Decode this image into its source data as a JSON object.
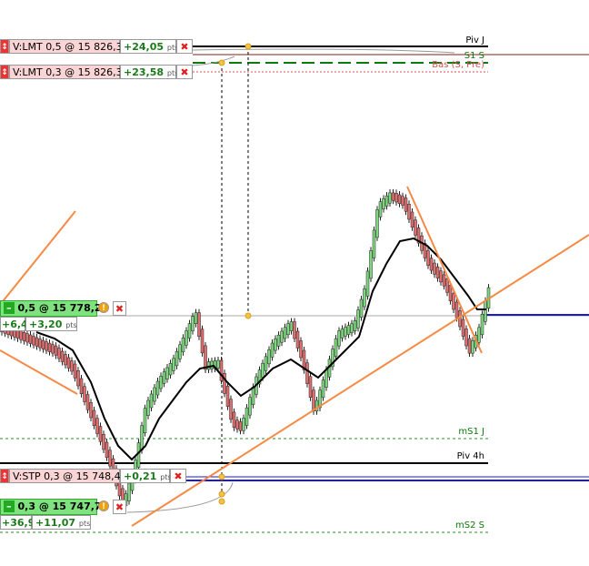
{
  "levels": [
    {
      "label": "Piv J"
    },
    {
      "label": "S1 S"
    },
    {
      "label": "Bas (S, Pre)"
    },
    {
      "label": "mS1 J"
    },
    {
      "label": "Piv 4h"
    },
    {
      "label": "mS2 S"
    }
  ],
  "sell_orders": [
    {
      "side": "V:LMT",
      "order": "0,5 @ 15 826,3",
      "pnl": "+24,05",
      "unit": "pts"
    },
    {
      "side": "V:LMT",
      "order": "0,3 @ 15 826,3",
      "pnl": "+23,58",
      "unit": "pts"
    },
    {
      "side": "V:STP",
      "order": "0,3 @ 15 748,4",
      "pnl": "+0,21",
      "unit": "pts"
    }
  ],
  "positions": [
    {
      "order": "0,5 @ 15 778,2",
      "pnl_points": "+6,4",
      "pnl": "+3,20",
      "unit": "pts"
    },
    {
      "order": "0,3 @ 15 747,7",
      "pnl_points": "+36,9",
      "pnl": "+11,07",
      "unit": "pts"
    }
  ]
}
